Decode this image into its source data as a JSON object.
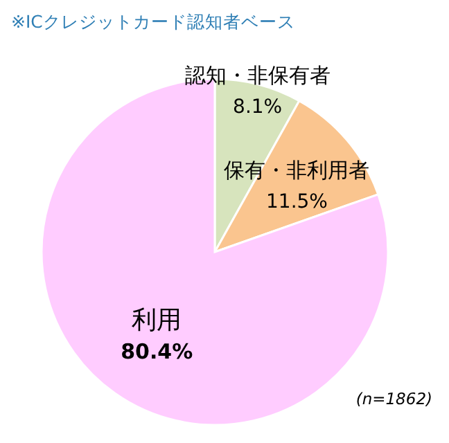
{
  "chart_data": {
    "type": "pie",
    "title": "※ICクレジットカード認知者ベース",
    "categories": [
      "認知・非保有者",
      "保有・非利用者",
      "利用"
    ],
    "values": [
      8.1,
      11.5,
      80.4
    ],
    "value_labels": [
      "8.1%",
      "11.5%",
      "80.4%"
    ],
    "colors": [
      "#d7e4bd",
      "#fac58f",
      "#ffccff"
    ],
    "annotations": [
      "(n=1862)"
    ]
  }
}
